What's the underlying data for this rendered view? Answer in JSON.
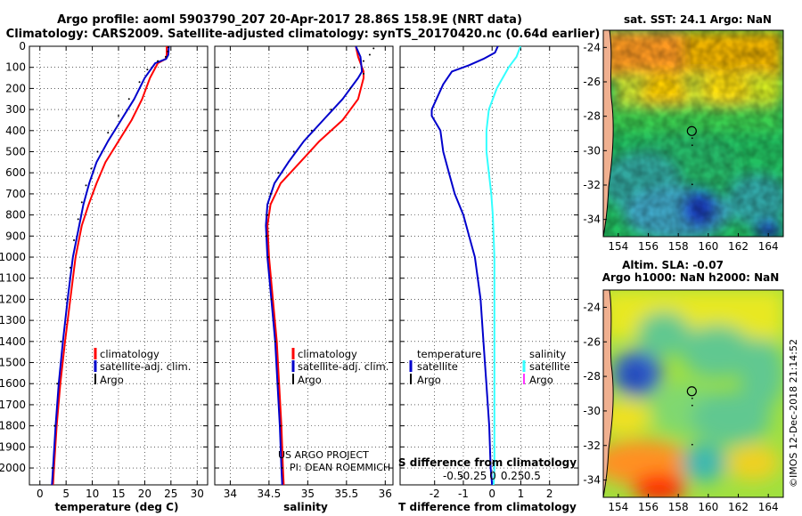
{
  "title": {
    "line1": "Argo profile: aoml 5903790_207 20-Apr-2017 28.86S 158.9E (NRT data)",
    "line2": "Climatology: CARS2009. Satellite-adjusted climatology: synTS_20170420.nc (0.64d earlier)"
  },
  "colors": {
    "climatology": "#ff0000",
    "satellite": "#0000cc",
    "argo": "#000000",
    "satellite_salinity": "#33ffff",
    "argo_salinity": "#ff33ff"
  },
  "chart_data": [
    {
      "type": "line",
      "name": "temperature-panel",
      "xlabel": "temperature (deg C)",
      "ylabel": "",
      "xlim": [
        -2,
        32
      ],
      "ylim": [
        2080,
        0
      ],
      "xticks": [
        0,
        5,
        10,
        15,
        20,
        25,
        30
      ],
      "yticks": [
        0,
        100,
        200,
        300,
        400,
        500,
        600,
        700,
        800,
        900,
        1000,
        1100,
        1200,
        1300,
        1400,
        1500,
        1600,
        1700,
        1800,
        1900,
        2000
      ],
      "legend": [
        "climatology",
        "satellite-adj. clim.",
        "Argo"
      ],
      "legend_position": "lower-right",
      "series": [
        {
          "name": "climatology",
          "style": "line",
          "points": [
            [
              24.2,
              0
            ],
            [
              24.2,
              40
            ],
            [
              24.0,
              60
            ],
            [
              22.5,
              80
            ],
            [
              21.0,
              150
            ],
            [
              19.5,
              250
            ],
            [
              17.5,
              350
            ],
            [
              15.0,
              450
            ],
            [
              12.5,
              550
            ],
            [
              10.8,
              650
            ],
            [
              9.3,
              750
            ],
            [
              8.0,
              850
            ],
            [
              6.8,
              1000
            ],
            [
              5.8,
              1200
            ],
            [
              4.8,
              1400
            ],
            [
              3.9,
              1600
            ],
            [
              3.2,
              1800
            ],
            [
              2.7,
              2000
            ],
            [
              2.5,
              2080
            ]
          ]
        },
        {
          "name": "satellite-adj. clim.",
          "style": "line",
          "points": [
            [
              24.6,
              0
            ],
            [
              24.5,
              40
            ],
            [
              24.1,
              60
            ],
            [
              22.0,
              80
            ],
            [
              20.0,
              150
            ],
            [
              18.0,
              250
            ],
            [
              15.5,
              350
            ],
            [
              13.0,
              450
            ],
            [
              10.8,
              550
            ],
            [
              9.4,
              650
            ],
            [
              8.3,
              750
            ],
            [
              7.5,
              850
            ],
            [
              6.3,
              1000
            ],
            [
              5.3,
              1200
            ],
            [
              4.4,
              1400
            ],
            [
              3.6,
              1600
            ],
            [
              3.0,
              1800
            ],
            [
              2.5,
              2000
            ],
            [
              2.3,
              2080
            ]
          ]
        },
        {
          "name": "Argo",
          "style": "dots",
          "points": [
            [
              24.5,
              5
            ],
            [
              24.4,
              25
            ],
            [
              24.0,
              50
            ],
            [
              22.5,
              70
            ],
            [
              20.5,
              110
            ],
            [
              19.0,
              170
            ],
            [
              17.0,
              250
            ],
            [
              15.0,
              330
            ],
            [
              13.0,
              410
            ],
            [
              11.0,
              500
            ],
            [
              9.8,
              580
            ],
            [
              8.8,
              660
            ],
            [
              8.0,
              740
            ],
            [
              7.3,
              820
            ],
            [
              6.5,
              920
            ],
            [
              5.8,
              1050
            ],
            [
              4.9,
              1200
            ],
            [
              4.0,
              1400
            ],
            [
              3.3,
              1600
            ],
            [
              2.8,
              1800
            ],
            [
              2.4,
              2000
            ]
          ]
        }
      ]
    },
    {
      "type": "line",
      "name": "salinity-panel",
      "xlabel": "salinity",
      "xlim": [
        33.8,
        36.1
      ],
      "ylim": [
        2080,
        0
      ],
      "xticks": [
        34,
        34.5,
        35,
        35.5,
        36
      ],
      "xtick_labels": [
        "34",
        "34.5",
        "35",
        "35.5",
        "36"
      ],
      "legend": [
        "climatology",
        "satellite-adj. clim.",
        "Argo"
      ],
      "legend_position": "lower-right",
      "annotation": [
        "US ARGO PROJECT",
        "PI: DEAN ROEMMICH"
      ],
      "series": [
        {
          "name": "climatology",
          "style": "line",
          "points": [
            [
              35.62,
              0
            ],
            [
              35.65,
              50
            ],
            [
              35.72,
              120
            ],
            [
              35.72,
              150
            ],
            [
              35.65,
              250
            ],
            [
              35.45,
              350
            ],
            [
              35.15,
              450
            ],
            [
              34.9,
              550
            ],
            [
              34.65,
              650
            ],
            [
              34.52,
              750
            ],
            [
              34.48,
              850
            ],
            [
              34.5,
              1000
            ],
            [
              34.55,
              1200
            ],
            [
              34.6,
              1400
            ],
            [
              34.63,
              1600
            ],
            [
              34.66,
              1800
            ],
            [
              34.68,
              2000
            ],
            [
              34.69,
              2080
            ]
          ]
        },
        {
          "name": "satellite-adj. clim.",
          "style": "line",
          "points": [
            [
              35.62,
              0
            ],
            [
              35.68,
              50
            ],
            [
              35.7,
              120
            ],
            [
              35.65,
              150
            ],
            [
              35.45,
              250
            ],
            [
              35.2,
              350
            ],
            [
              34.95,
              450
            ],
            [
              34.75,
              550
            ],
            [
              34.57,
              650
            ],
            [
              34.48,
              750
            ],
            [
              34.46,
              850
            ],
            [
              34.48,
              1000
            ],
            [
              34.53,
              1200
            ],
            [
              34.58,
              1400
            ],
            [
              34.61,
              1600
            ],
            [
              34.64,
              1800
            ],
            [
              34.66,
              2000
            ],
            [
              34.67,
              2080
            ]
          ]
        },
        {
          "name": "Argo",
          "style": "dots",
          "points": [
            [
              35.85,
              10
            ],
            [
              35.8,
              40
            ],
            [
              35.72,
              70
            ],
            [
              35.6,
              100
            ],
            [
              35.72,
              130
            ],
            [
              35.55,
              200
            ],
            [
              35.3,
              300
            ],
            [
              35.05,
              400
            ],
            [
              34.82,
              500
            ],
            [
              34.62,
              600
            ],
            [
              34.52,
              700
            ],
            [
              34.48,
              800
            ],
            [
              34.47,
              900
            ],
            [
              34.49,
              1000
            ],
            [
              34.53,
              1200
            ],
            [
              34.58,
              1400
            ],
            [
              34.62,
              1600
            ],
            [
              34.65,
              1800
            ],
            [
              34.67,
              2000
            ]
          ]
        }
      ]
    },
    {
      "type": "line",
      "name": "difference-panel",
      "xlabel": "T difference from climatology",
      "xlabel2": "S difference from climatology",
      "xlim": [
        -3.2,
        3.0
      ],
      "ylim": [
        2080,
        0
      ],
      "xticks": [
        -2,
        -1,
        0,
        1,
        2
      ],
      "xtick_labels": [
        "-2",
        "-1",
        "0",
        "1",
        "2"
      ],
      "s_ticks": [
        -0.5,
        -0.25,
        0,
        0.25,
        0.5
      ],
      "s_tick_labels": [
        "-0.5",
        "-0.25",
        "0",
        "0.25",
        "0.5"
      ],
      "legend_temperature": {
        "title": "temperature",
        "items": [
          "satellite",
          "Argo"
        ]
      },
      "legend_salinity": {
        "title": "salinity",
        "items": [
          "satellite",
          "Argo"
        ]
      },
      "series": [
        {
          "name": "T satellite",
          "style": "line",
          "points": [
            [
              0.2,
              0
            ],
            [
              0.1,
              30
            ],
            [
              -0.3,
              60
            ],
            [
              -0.8,
              90
            ],
            [
              -1.4,
              120
            ],
            [
              -1.7,
              180
            ],
            [
              -1.9,
              240
            ],
            [
              -2.1,
              300
            ],
            [
              -2.1,
              330
            ],
            [
              -1.8,
              400
            ],
            [
              -1.7,
              500
            ],
            [
              -1.5,
              600
            ],
            [
              -1.3,
              700
            ],
            [
              -1.0,
              800
            ],
            [
              -0.8,
              900
            ],
            [
              -0.6,
              1000
            ],
            [
              -0.4,
              1200
            ],
            [
              -0.3,
              1400
            ],
            [
              -0.2,
              1600
            ],
            [
              -0.1,
              1800
            ],
            [
              -0.05,
              2000
            ],
            [
              0,
              2080
            ]
          ]
        },
        {
          "name": "S satellite",
          "style": "line",
          "points": [
            [
              0.35,
              0
            ],
            [
              0.3,
              50
            ],
            [
              0.2,
              100
            ],
            [
              0.05,
              200
            ],
            [
              -0.05,
              300
            ],
            [
              -0.08,
              400
            ],
            [
              -0.08,
              500
            ],
            [
              -0.05,
              600
            ],
            [
              -0.02,
              700
            ],
            [
              0.0,
              800
            ],
            [
              0.02,
              1000
            ],
            [
              0.02,
              1200
            ],
            [
              0.02,
              1400
            ],
            [
              0.02,
              1600
            ],
            [
              0.02,
              1800
            ],
            [
              0.02,
              2000
            ],
            [
              0.01,
              2080
            ]
          ]
        }
      ]
    },
    {
      "type": "heatmap",
      "name": "sst-map",
      "title": "sat. SST: 24.1 Argo: NaN",
      "xlim": [
        153,
        165
      ],
      "ylim": [
        -35,
        -23
      ],
      "xticks": [
        154,
        156,
        158,
        160,
        162,
        164
      ],
      "yticks": [
        -24,
        -26,
        -28,
        -30,
        -32,
        -34
      ],
      "float_position": [
        158.9,
        -28.86
      ]
    },
    {
      "type": "heatmap",
      "name": "sla-map",
      "title_line1": "Altim. SLA: -0.07",
      "title_line2": "Argo h1000: NaN h2000: NaN",
      "xlim": [
        153,
        165
      ],
      "ylim": [
        -35,
        -23
      ],
      "xticks": [
        154,
        156,
        158,
        160,
        162,
        164
      ],
      "yticks": [
        -24,
        -26,
        -28,
        -30,
        -32,
        -34
      ],
      "float_position": [
        158.9,
        -28.86
      ]
    }
  ],
  "watermark": "©IMOS 12-Dec-2018 21:14:52"
}
